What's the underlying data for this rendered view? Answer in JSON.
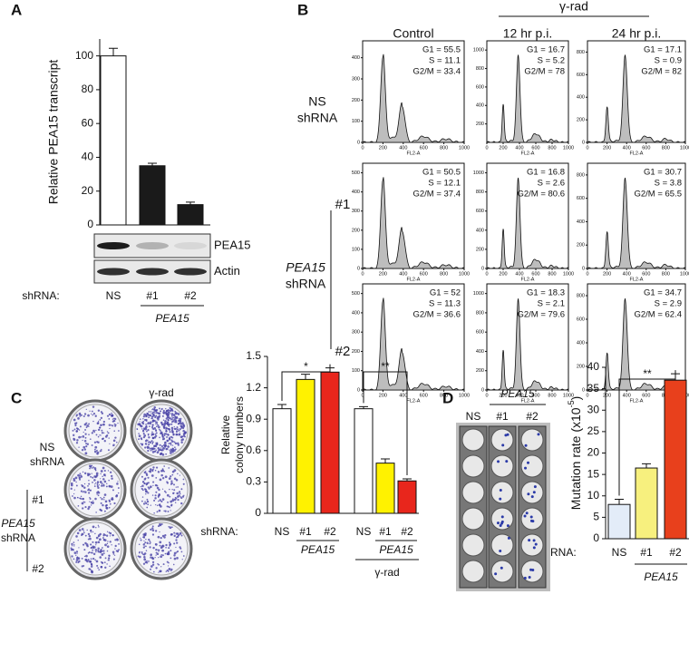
{
  "panel_labels": [
    "A",
    "B",
    "C",
    "D"
  ],
  "chart_data": [
    {
      "type": "bar",
      "ylabel": "Relative PEA15 transcript",
      "x_prefix": "shRNA:",
      "categories": [
        "NS",
        "#1",
        "#2"
      ],
      "values": [
        100,
        35,
        12
      ],
      "errors": [
        4.5,
        1.5,
        1.5
      ],
      "colors": [
        "#ffffff",
        "#1a1a1a",
        "#1a1a1a"
      ],
      "ylim": [
        0,
        110
      ],
      "yticks": [
        0,
        20,
        40,
        60,
        80,
        100
      ],
      "group_labels": [
        "PEA15"
      ],
      "blot": {
        "bands": [
          "PEA15",
          "Actin"
        ]
      }
    },
    {
      "type": "flow",
      "columns": [
        "Control",
        "12 hr p.i.",
        "24 hr p.i."
      ],
      "column_group": "γ-rad",
      "ns_label": [
        "NS",
        "shRNA"
      ],
      "row_labels": [
        "#1",
        "#2"
      ],
      "row_group": [
        "PEA15",
        "shRNA"
      ],
      "xlabel": "FL2-A",
      "xlim": [
        0,
        1000
      ],
      "xticks": [
        0,
        200,
        400,
        600,
        800,
        1000
      ],
      "plots": [
        [
          {
            "stats": [
              "G1 = 55.5",
              "S = 11.1",
              "G2/M = 33.4"
            ],
            "ylim": [
              0,
              480
            ],
            "yticks": [
              0,
              100,
              200,
              300,
              400
            ]
          },
          {
            "stats": [
              "G1 = 16.7",
              "S = 5.2",
              "G2/M = 78"
            ],
            "ylim": [
              0,
              1100
            ],
            "yticks": [
              200,
              400,
              600,
              800,
              1000
            ]
          },
          {
            "stats": [
              "G1 = 17.1",
              "S = 0.9",
              "G2/M = 82"
            ],
            "ylim": [
              0,
              900
            ],
            "yticks": [
              0,
              200,
              400,
              600,
              800
            ]
          }
        ],
        [
          {
            "stats": [
              "G1 = 50.5",
              "S = 12.1",
              "G2/M = 37.4"
            ],
            "ylim": [
              0,
              550
            ],
            "yticks": [
              0,
              100,
              200,
              300,
              400,
              500
            ]
          },
          {
            "stats": [
              "G1 = 16.8",
              "S = 2.6",
              "G2/M = 80.6"
            ],
            "ylim": [
              0,
              1100
            ],
            "yticks": [
              0,
              200,
              400,
              600,
              800,
              1000
            ]
          },
          {
            "stats": [
              "G1 = 30.7",
              "S = 3.8",
              "G2/M = 65.5"
            ],
            "ylim": [
              0,
              900
            ],
            "yticks": [
              0,
              200,
              400,
              600,
              800
            ]
          }
        ],
        [
          {
            "stats": [
              "G1 = 52",
              "S = 11.3",
              "G2/M = 36.6"
            ],
            "ylim": [
              0,
              550
            ],
            "yticks": [
              0,
              100,
              200,
              300,
              400,
              500
            ]
          },
          {
            "stats": [
              "G1 = 18.3",
              "S = 2.1",
              "G2/M = 79.6"
            ],
            "ylim": [
              0,
              1100
            ],
            "yticks": [
              0,
              200,
              400,
              600,
              800,
              1000
            ]
          },
          {
            "stats": [
              "G1 = 34.7",
              "S = 2.9",
              "G2/M = 62.4"
            ],
            "ylim": [
              0,
              900
            ],
            "yticks": [
              0,
              200,
              400,
              600,
              800
            ]
          }
        ]
      ]
    },
    {
      "type": "bar",
      "ylabel": [
        "Relative",
        "colony numbers"
      ],
      "x_prefix": "shRNA:",
      "categories": [
        "NS",
        "#1",
        "#2",
        "NS",
        "#1",
        "#2"
      ],
      "values": [
        1.0,
        1.28,
        1.35,
        1.0,
        0.48,
        0.31
      ],
      "errors": [
        0.04,
        0.05,
        0.04,
        0.02,
        0.04,
        0.02
      ],
      "colors": [
        "#ffffff",
        "#fff200",
        "#e8261c",
        "#ffffff",
        "#fff200",
        "#e8261c"
      ],
      "ylim": [
        0,
        1.5
      ],
      "yticks": [
        0,
        0.3,
        0.6,
        0.9,
        1.2,
        1.5
      ],
      "group_labels": [
        "PEA15",
        "PEA15",
        "γ-rad"
      ],
      "annotations": [
        "*",
        "**"
      ],
      "plates": {
        "column_label": "γ-rad",
        "ns_label": [
          "NS",
          "shRNA"
        ],
        "row_labels": [
          "#1",
          "#2"
        ],
        "row_group": [
          "PEA15",
          "shRNA"
        ]
      }
    },
    {
      "type": "bar",
      "ylabel": [
        "Mutation rate (x10",
        "-5",
        ")"
      ],
      "x_prefix": "shRNA:",
      "categories": [
        "NS",
        "#1",
        "#2"
      ],
      "values": [
        8,
        16.5,
        37
      ],
      "errors": [
        1.2,
        1,
        1.5
      ],
      "colors": [
        "#e3ecf8",
        "#f7f07e",
        "#e8401c"
      ],
      "ylim": [
        0,
        40
      ],
      "yticks": [
        0,
        5,
        10,
        15,
        20,
        25,
        30,
        35,
        40
      ],
      "group_labels": [
        "PEA15"
      ],
      "annotations": [
        "**"
      ],
      "plates": {
        "column_labels": [
          "NS",
          "#1",
          "#2"
        ],
        "group": "PEA15"
      }
    }
  ]
}
